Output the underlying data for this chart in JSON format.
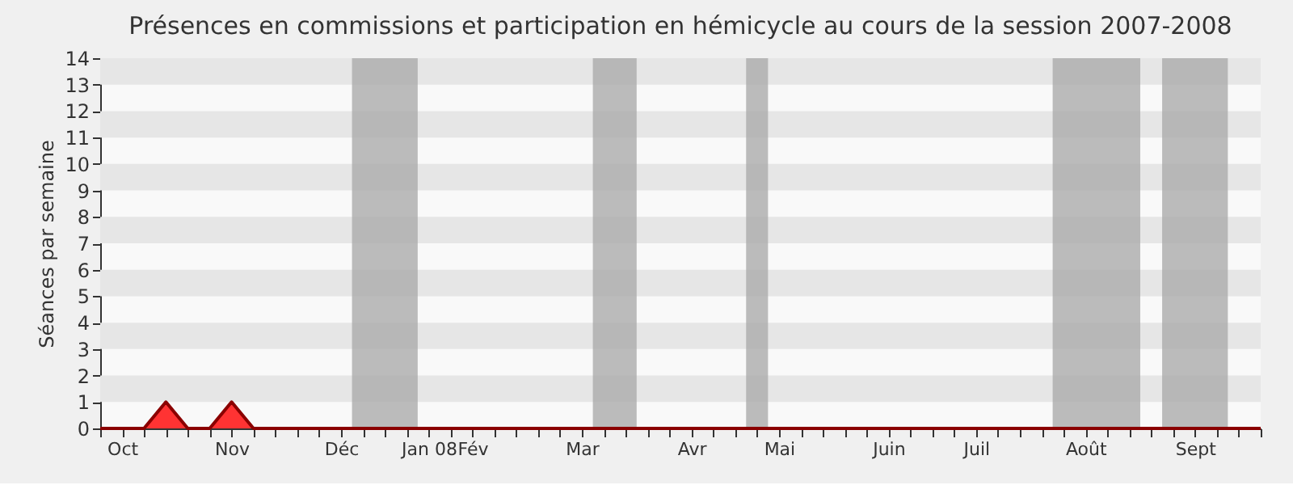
{
  "chart_data": {
    "type": "area",
    "title": "Présences en commissions et participation en hémicycle au cours de la session 2007-2008",
    "ylabel": "Séances par semaine",
    "categories": [
      null,
      "Oct",
      null,
      null,
      null,
      null,
      "Nov",
      null,
      null,
      null,
      null,
      "Déc",
      null,
      null,
      null,
      "Jan 08",
      null,
      "Fév",
      null,
      null,
      null,
      null,
      "Mar",
      null,
      null,
      null,
      null,
      "Avr",
      null,
      null,
      null,
      "Mai",
      null,
      null,
      null,
      null,
      "Juin",
      null,
      null,
      null,
      "Juil",
      null,
      null,
      null,
      null,
      "Août",
      null,
      null,
      null,
      null,
      "Sept",
      null,
      null,
      null
    ],
    "series": [
      {
        "color": "#ff3333",
        "values": [
          0,
          0,
          0,
          1,
          0,
          0,
          1,
          0,
          0,
          0,
          0,
          0,
          0,
          0,
          0,
          0,
          0,
          0,
          0,
          0,
          0,
          0,
          0,
          0,
          0,
          0,
          0,
          0,
          0,
          0,
          0,
          0,
          0,
          0,
          0,
          0,
          0,
          0,
          0,
          0,
          0,
          0,
          0,
          0,
          0,
          0,
          0,
          0,
          0,
          0,
          0,
          0,
          0,
          0
        ]
      }
    ],
    "ylim": [
      0,
      14
    ],
    "yticks": [
      0,
      1,
      2,
      3,
      4,
      5,
      6,
      7,
      8,
      9,
      10,
      11,
      12,
      13,
      14
    ],
    "bands": [
      {
        "axis": "y",
        "from": 1,
        "to": 2,
        "color": "#e6e6e6"
      },
      {
        "axis": "y",
        "from": 3,
        "to": 4,
        "color": "#e6e6e6"
      },
      {
        "axis": "y",
        "from": 5,
        "to": 6,
        "color": "#e6e6e6"
      },
      {
        "axis": "y",
        "from": 7,
        "to": 8,
        "color": "#e6e6e6"
      },
      {
        "axis": "y",
        "from": 9,
        "to": 10,
        "color": "#e6e6e6"
      },
      {
        "axis": "y",
        "from": 11,
        "to": 12,
        "color": "#e6e6e6"
      },
      {
        "axis": "y",
        "from": 13,
        "to": 14,
        "color": "#e6e6e6"
      }
    ],
    "grid": false
  }
}
